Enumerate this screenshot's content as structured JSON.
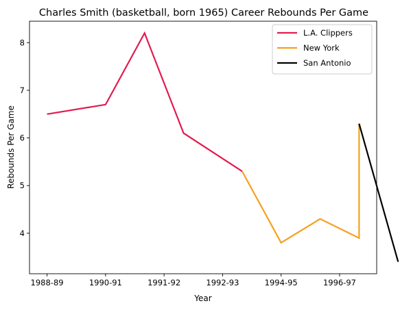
{
  "chart_data": {
    "type": "line",
    "title": "Charles Smith (basketball, born 1965) Career Rebounds Per Game",
    "xlabel": "Year",
    "ylabel": "Rebounds Per Game",
    "x_ticks": [
      {
        "label": "1988-89",
        "pos": 0
      },
      {
        "label": "1990-91",
        "pos": 1.5
      },
      {
        "label": "1991-92",
        "pos": 3
      },
      {
        "label": "1992-93",
        "pos": 4.5
      },
      {
        "label": "1994-95",
        "pos": 6
      },
      {
        "label": "1996-97",
        "pos": 7.5
      }
    ],
    "xlim": [
      -0.45,
      8.45
    ],
    "ylim": [
      3.15,
      8.45
    ],
    "y_ticks": [
      4,
      5,
      6,
      7,
      8
    ],
    "grid": false,
    "legend_position": "top-right",
    "series": [
      {
        "name": "L.A. Clippers",
        "color": "#e31a4f",
        "points": [
          [
            0,
            6.5
          ],
          [
            1.5,
            6.7
          ],
          [
            2.5,
            8.2
          ],
          [
            3.5,
            6.1
          ],
          [
            5,
            5.3
          ]
        ]
      },
      {
        "name": "New York",
        "color": "#f5a020",
        "points": [
          [
            5,
            5.3
          ],
          [
            6,
            3.8
          ],
          [
            7,
            4.3
          ],
          [
            8,
            3.9
          ],
          [
            8,
            6.3
          ]
        ]
      },
      {
        "name": "San Antonio",
        "color": "#000000",
        "points": [
          [
            8,
            6.3
          ],
          [
            9,
            3.4
          ]
        ]
      }
    ]
  }
}
